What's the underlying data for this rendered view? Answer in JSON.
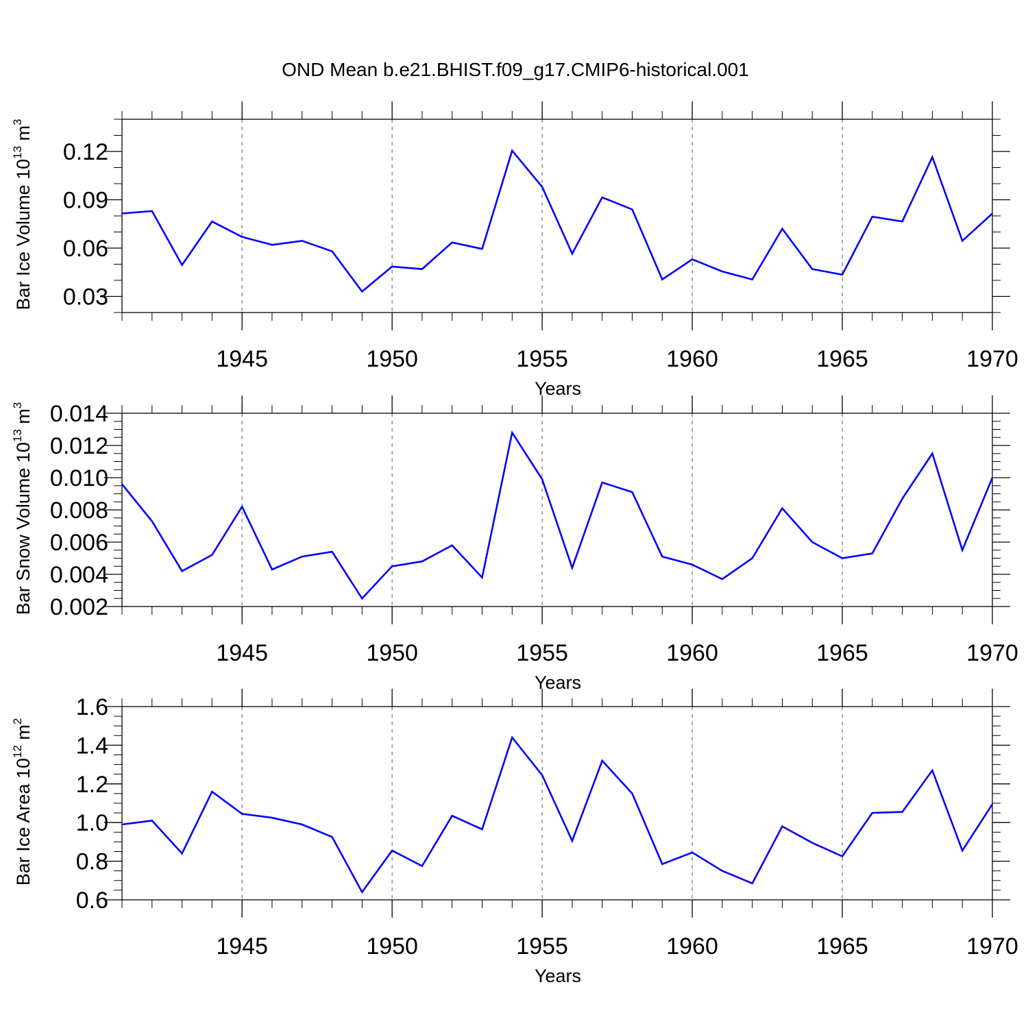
{
  "title": "OND Mean b.e21.BHIST.f09_g17.CMIP6-historical.001",
  "colors": {
    "line": "#0000ff",
    "axis": "#000000",
    "grid": "#555555"
  },
  "chart_data": [
    {
      "type": "line",
      "ylabel": {
        "main": "Bar Ice Volume 10",
        "sup": "13",
        "unit": " m",
        "unit_sup": "3"
      },
      "xlabel": "Years",
      "xlim": [
        1941,
        1970
      ],
      "ylim": [
        0.02,
        0.14
      ],
      "x_ticks": [
        1945,
        1950,
        1955,
        1960,
        1965,
        1970
      ],
      "x_tick_labels": [
        "1945",
        "1950",
        "1955",
        "1960",
        "1965",
        "1970"
      ],
      "y_ticks": [
        0.03,
        0.06,
        0.09,
        0.12
      ],
      "y_tick_labels": [
        "0.03",
        "0.06",
        "0.09",
        "0.12"
      ],
      "y_minor_step": 0.01,
      "vertical_gridlines": true,
      "series": [
        {
          "name": "Bar Ice Volume",
          "x": [
            1941,
            1942,
            1943,
            1944,
            1945,
            1946,
            1947,
            1948,
            1949,
            1950,
            1951,
            1952,
            1953,
            1954,
            1955,
            1956,
            1957,
            1958,
            1959,
            1960,
            1961,
            1962,
            1963,
            1964,
            1965,
            1966,
            1967,
            1968,
            1969,
            1970
          ],
          "values": [
            0.0815,
            0.083,
            0.0495,
            0.0765,
            0.067,
            0.062,
            0.0645,
            0.058,
            0.033,
            0.0485,
            0.047,
            0.0635,
            0.0595,
            0.1205,
            0.098,
            0.0565,
            0.0915,
            0.084,
            0.0405,
            0.053,
            0.0455,
            0.0405,
            0.072,
            0.047,
            0.0435,
            0.0795,
            0.0765,
            0.1165,
            0.0645,
            0.0815
          ]
        }
      ]
    },
    {
      "type": "line",
      "ylabel": {
        "main": "Bar Snow Volume 10",
        "sup": "13",
        "unit": " m",
        "unit_sup": "3"
      },
      "xlabel": "Years",
      "xlim": [
        1941,
        1970
      ],
      "ylim": [
        0.002,
        0.014
      ],
      "x_ticks": [
        1945,
        1950,
        1955,
        1960,
        1965,
        1970
      ],
      "x_tick_labels": [
        "1945",
        "1950",
        "1955",
        "1960",
        "1965",
        "1970"
      ],
      "y_ticks": [
        0.002,
        0.004,
        0.006,
        0.008,
        0.01,
        0.012,
        0.014
      ],
      "y_tick_labels": [
        "0.002",
        "0.004",
        "0.006",
        "0.008",
        "0.010",
        "0.012",
        "0.014"
      ],
      "y_minor_step": 0.0005,
      "vertical_gridlines": true,
      "series": [
        {
          "name": "Bar Snow Volume",
          "x": [
            1941,
            1942,
            1943,
            1944,
            1945,
            1946,
            1947,
            1948,
            1949,
            1950,
            1951,
            1952,
            1953,
            1954,
            1955,
            1956,
            1957,
            1958,
            1959,
            1960,
            1961,
            1962,
            1963,
            1964,
            1965,
            1966,
            1967,
            1968,
            1969,
            1970
          ],
          "values": [
            0.0096,
            0.0073,
            0.0042,
            0.0052,
            0.0082,
            0.0043,
            0.0051,
            0.0054,
            0.0025,
            0.0045,
            0.0048,
            0.0058,
            0.0038,
            0.0128,
            0.0099,
            0.0044,
            0.0097,
            0.0091,
            0.0051,
            0.0046,
            0.0037,
            0.005,
            0.0081,
            0.006,
            0.005,
            0.0053,
            0.0087,
            0.0115,
            0.0055,
            0.01
          ]
        }
      ]
    },
    {
      "type": "line",
      "ylabel": {
        "main": "Bar Ice Area 10",
        "sup": "12",
        "unit": " m",
        "unit_sup": "2"
      },
      "xlabel": "Years",
      "xlim": [
        1941,
        1970
      ],
      "ylim": [
        0.6,
        1.6
      ],
      "x_ticks": [
        1945,
        1950,
        1955,
        1960,
        1965,
        1970
      ],
      "x_tick_labels": [
        "1945",
        "1950",
        "1955",
        "1960",
        "1965",
        "1970"
      ],
      "y_ticks": [
        0.6,
        0.8,
        1.0,
        1.2,
        1.4,
        1.6
      ],
      "y_tick_labels": [
        "0.6",
        "0.8",
        "1.0",
        "1.2",
        "1.4",
        "1.6"
      ],
      "y_minor_step": 0.05,
      "vertical_gridlines": true,
      "series": [
        {
          "name": "Bar Ice Area",
          "x": [
            1941,
            1942,
            1943,
            1944,
            1945,
            1946,
            1947,
            1948,
            1949,
            1950,
            1951,
            1952,
            1953,
            1954,
            1955,
            1956,
            1957,
            1958,
            1959,
            1960,
            1961,
            1962,
            1963,
            1964,
            1965,
            1966,
            1967,
            1968,
            1969,
            1970
          ],
          "values": [
            0.99,
            1.01,
            0.84,
            1.16,
            1.045,
            1.025,
            0.99,
            0.925,
            0.64,
            0.855,
            0.775,
            1.035,
            0.965,
            1.44,
            1.245,
            0.905,
            1.32,
            1.15,
            0.785,
            0.845,
            0.75,
            0.685,
            0.98,
            0.895,
            0.825,
            1.05,
            1.055,
            1.27,
            0.855,
            1.095
          ]
        }
      ]
    }
  ]
}
